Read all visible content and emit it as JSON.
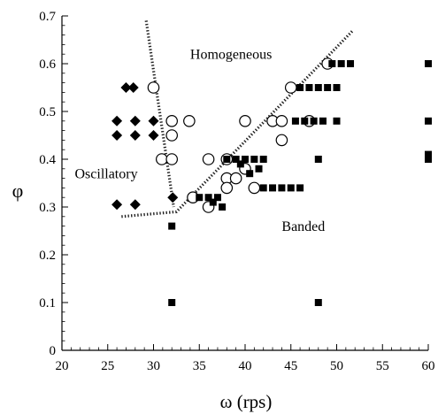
{
  "chart_data": {
    "type": "scatter",
    "xlabel": "ω (rps)",
    "ylabel": "φ",
    "xlim": [
      20,
      60
    ],
    "ylim": [
      0,
      0.7
    ],
    "xticks": [
      "20",
      "25",
      "30",
      "35",
      "40",
      "45",
      "50",
      "55",
      "60"
    ],
    "yticks": [
      "0",
      "0.1",
      "0.2",
      "0.3",
      "0.4",
      "0.5",
      "0.6",
      "0.7"
    ],
    "grid": false,
    "annotations": [
      "Homogeneous",
      "Oscillatory",
      "Banded"
    ],
    "series": [
      {
        "name": "",
        "marker": "diamond",
        "fill": "filled",
        "points": [
          [
            26,
            0.48
          ],
          [
            26,
            0.45
          ],
          [
            26,
            0.305
          ],
          [
            27,
            0.55
          ],
          [
            27.8,
            0.55
          ],
          [
            28,
            0.48
          ],
          [
            28,
            0.45
          ],
          [
            28,
            0.305
          ],
          [
            30,
            0.48
          ],
          [
            30,
            0.45
          ],
          [
            32.1,
            0.32
          ]
        ]
      },
      {
        "name": "",
        "marker": "circle",
        "fill": "open",
        "points": [
          [
            30,
            0.55
          ],
          [
            30.9,
            0.4
          ],
          [
            32,
            0.48
          ],
          [
            32,
            0.45
          ],
          [
            32,
            0.4
          ],
          [
            33.9,
            0.48
          ],
          [
            34.3,
            0.32
          ],
          [
            36,
            0.3
          ],
          [
            36,
            0.4
          ],
          [
            38,
            0.4
          ],
          [
            38,
            0.36
          ],
          [
            38,
            0.34
          ],
          [
            39,
            0.36
          ],
          [
            40,
            0.38
          ],
          [
            40,
            0.48
          ],
          [
            41,
            0.34
          ],
          [
            43,
            0.48
          ],
          [
            44,
            0.48
          ],
          [
            44,
            0.44
          ],
          [
            45,
            0.55
          ],
          [
            47,
            0.48
          ],
          [
            49,
            0.6
          ]
        ]
      },
      {
        "name": "",
        "marker": "square",
        "fill": "filled",
        "points": [
          [
            32,
            0.26
          ],
          [
            32,
            0.1
          ],
          [
            35,
            0.32
          ],
          [
            36,
            0.32
          ],
          [
            37,
            0.32
          ],
          [
            36.5,
            0.31
          ],
          [
            37.5,
            0.3
          ],
          [
            38,
            0.4
          ],
          [
            39,
            0.4
          ],
          [
            40,
            0.4
          ],
          [
            41,
            0.4
          ],
          [
            39.5,
            0.39
          ],
          [
            40.5,
            0.37
          ],
          [
            41.5,
            0.38
          ],
          [
            42,
            0.4
          ],
          [
            42,
            0.34
          ],
          [
            43,
            0.34
          ],
          [
            44,
            0.34
          ],
          [
            45,
            0.34
          ],
          [
            46,
            0.34
          ],
          [
            45.5,
            0.48
          ],
          [
            46.5,
            0.48
          ],
          [
            47.5,
            0.48
          ],
          [
            48.5,
            0.48
          ],
          [
            50,
            0.48
          ],
          [
            46,
            0.55
          ],
          [
            47,
            0.55
          ],
          [
            48,
            0.55
          ],
          [
            49,
            0.55
          ],
          [
            50,
            0.55
          ],
          [
            49.5,
            0.6
          ],
          [
            50.5,
            0.6
          ],
          [
            51.5,
            0.6
          ],
          [
            48,
            0.4
          ],
          [
            48,
            0.1
          ],
          [
            60,
            0.6
          ],
          [
            60,
            0.48
          ],
          [
            60,
            0.4
          ],
          [
            60,
            0.41
          ]
        ]
      }
    ],
    "boundaries": [
      {
        "points": [
          [
            29.2,
            0.69
          ],
          [
            32.2,
            0.3
          ]
        ]
      },
      {
        "points": [
          [
            26.5,
            0.28
          ],
          [
            32.5,
            0.29
          ],
          [
            51.8,
            0.67
          ]
        ]
      }
    ]
  },
  "labels": {
    "homogeneous": {
      "text": "Homogeneous",
      "x": 34,
      "y": 0.61
    },
    "oscillatory": {
      "text": "Oscillatory",
      "x": 21.4,
      "y": 0.36
    },
    "banded": {
      "text": "Banded",
      "x": 44,
      "y": 0.25
    }
  }
}
